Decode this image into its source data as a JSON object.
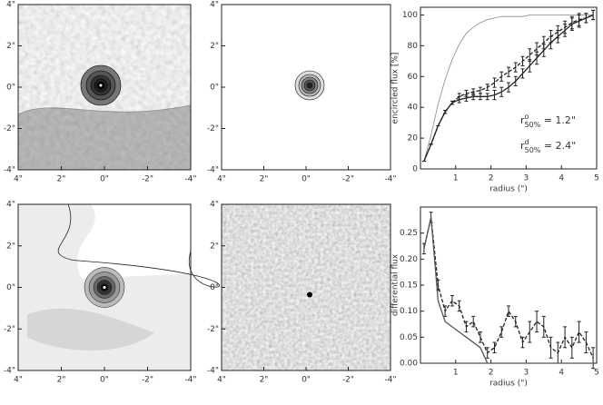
{
  "chart_data": [
    {
      "type": "image",
      "xlim": [
        4,
        -4
      ],
      "ylim": [
        -4,
        4
      ],
      "xticks": [
        {
          "value": 4,
          "label": "4\""
        },
        {
          "value": 2,
          "label": "2\""
        },
        {
          "value": 0,
          "label": "0\""
        },
        {
          "value": -2,
          "label": "-2\""
        },
        {
          "value": -4,
          "label": "-4\""
        }
      ],
      "yticks": [
        {
          "value": 4,
          "label": "4\""
        },
        {
          "value": 2,
          "label": "2\""
        },
        {
          "value": 0,
          "label": "0\""
        },
        {
          "value": -2,
          "label": "-2\""
        },
        {
          "value": -4,
          "label": "-4\""
        }
      ]
    },
    {
      "type": "image",
      "xlim": [
        4,
        -4
      ],
      "ylim": [
        -4,
        4
      ],
      "xticks": [
        {
          "value": 4,
          "label": "4\""
        },
        {
          "value": 2,
          "label": "2\""
        },
        {
          "value": 0,
          "label": "0\""
        },
        {
          "value": -2,
          "label": "-2\""
        },
        {
          "value": -4,
          "label": "-4\""
        }
      ],
      "yticks": [
        {
          "value": 4,
          "label": "4\""
        },
        {
          "value": 2,
          "label": "2\""
        },
        {
          "value": 0,
          "label": "0\""
        },
        {
          "value": -2,
          "label": "-2\""
        },
        {
          "value": -4,
          "label": "-4\""
        }
      ]
    },
    {
      "type": "line",
      "ylabel": "encircled flux [%]",
      "xlabel": "radius (\")",
      "xlim": [
        0,
        5
      ],
      "ylim": [
        0,
        105
      ],
      "xticks": [
        1,
        2,
        3,
        4,
        5
      ],
      "yticks": [
        0,
        20,
        40,
        60,
        80,
        100
      ],
      "x": [
        0.1,
        0.3,
        0.5,
        0.7,
        0.9,
        1.1,
        1.3,
        1.5,
        1.7,
        1.9,
        2.1,
        2.3,
        2.5,
        2.7,
        2.9,
        3.1,
        3.3,
        3.5,
        3.7,
        3.9,
        4.1,
        4.3,
        4.5,
        4.7,
        4.9
      ],
      "series": [
        {
          "color": "#888888",
          "style": "thin",
          "values": [
            5,
            22,
            42,
            58,
            71,
            81,
            88,
            92,
            95,
            97,
            98,
            99,
            99,
            99,
            99,
            100,
            100,
            100,
            100,
            100,
            100,
            100,
            100,
            100,
            100
          ]
        },
        {
          "color": "#222222",
          "style": "dashed",
          "values": [
            5,
            16,
            28,
            37,
            43,
            47,
            49,
            50,
            51,
            53,
            56,
            60,
            63,
            66,
            70,
            74,
            78,
            82,
            86,
            89,
            92,
            95,
            97,
            98,
            100
          ],
          "errors": [
            0,
            0,
            0,
            1,
            1,
            2,
            2,
            2,
            2,
            2,
            3,
            3,
            3,
            3,
            3,
            4,
            4,
            4,
            4,
            4,
            4,
            4,
            4,
            3,
            3
          ]
        },
        {
          "color": "#222222",
          "style": "solid",
          "values": [
            5,
            16,
            28,
            37,
            43,
            45,
            46,
            47,
            47,
            47,
            48,
            50,
            53,
            57,
            62,
            67,
            72,
            77,
            82,
            86,
            90,
            94,
            96,
            98,
            100
          ],
          "errors": [
            0,
            0,
            0,
            1,
            1,
            2,
            2,
            2,
            2,
            2,
            3,
            3,
            3,
            3,
            3,
            4,
            4,
            4,
            4,
            4,
            4,
            4,
            4,
            3,
            3
          ]
        }
      ],
      "annotations": [
        {
          "text": "r",
          "sup": "o",
          "sub": "50%",
          "tail": " = 1.2\""
        },
        {
          "text": "r",
          "sup": "d",
          "sub": "50%",
          "tail": " = 2.4\""
        }
      ]
    },
    {
      "type": "image",
      "xlim": [
        4,
        -4
      ],
      "ylim": [
        -4,
        4
      ],
      "xticks": [
        {
          "value": 4,
          "label": "4\""
        },
        {
          "value": 2,
          "label": "2\""
        },
        {
          "value": 0,
          "label": "0\""
        },
        {
          "value": -2,
          "label": "-2\""
        },
        {
          "value": -4,
          "label": "-4\""
        }
      ],
      "yticks": [
        {
          "value": 4,
          "label": "4\""
        },
        {
          "value": 2,
          "label": "2\""
        },
        {
          "value": 0,
          "label": "0\""
        },
        {
          "value": -2,
          "label": "-2\""
        },
        {
          "value": -4,
          "label": "-4\""
        }
      ]
    },
    {
      "type": "image",
      "xlim": [
        4,
        -4
      ],
      "ylim": [
        -4,
        4
      ],
      "xticks": [
        {
          "value": 4,
          "label": "4\""
        },
        {
          "value": 2,
          "label": "2\""
        },
        {
          "value": 0,
          "label": "0\""
        },
        {
          "value": -2,
          "label": "-2\""
        },
        {
          "value": -4,
          "label": "-4\""
        }
      ],
      "yticks": [
        {
          "value": 4,
          "label": "4\""
        },
        {
          "value": 2,
          "label": "2\""
        },
        {
          "value": 0,
          "label": "0\""
        },
        {
          "value": -2,
          "label": "-2\""
        },
        {
          "value": -4,
          "label": "-4\""
        }
      ]
    },
    {
      "type": "line",
      "ylabel": "differential flux",
      "xlabel": "radius (\")",
      "xlim": [
        0,
        5
      ],
      "ylim": [
        0,
        0.3
      ],
      "xticks": [
        1,
        2,
        3,
        4,
        5
      ],
      "yticks": [
        {
          "value": 0,
          "label": "0.00"
        },
        0.05,
        {
          "value": 0.1,
          "label": "0.10"
        },
        {
          "value": 0.15,
          "label": "0.15"
        },
        {
          "value": 0.2,
          "label": "0.20"
        },
        0.25
      ],
      "x": [
        0.1,
        0.3,
        0.5,
        0.7,
        0.9,
        1.1,
        1.3,
        1.5,
        1.7,
        1.9,
        2.1,
        2.3,
        2.5,
        2.7,
        2.9,
        3.1,
        3.3,
        3.5,
        3.7,
        3.9,
        4.1,
        4.3,
        4.5,
        4.7,
        4.9
      ],
      "series": [
        {
          "color": "#222222",
          "style": "dashed",
          "values": [
            0.22,
            0.28,
            0.15,
            0.1,
            0.12,
            0.11,
            0.07,
            0.08,
            0.05,
            0.02,
            0.03,
            0.06,
            0.1,
            0.08,
            0.04,
            0.06,
            0.08,
            0.07,
            0.03,
            0.02,
            0.05,
            0.03,
            0.06,
            0.04,
            0.01
          ],
          "errors": [
            0.01,
            0.01,
            0.01,
            0.01,
            0.01,
            0.01,
            0.01,
            0.01,
            0.01,
            0.01,
            0.01,
            0.01,
            0.01,
            0.01,
            0.01,
            0.02,
            0.02,
            0.02,
            0.02,
            0.02,
            0.02,
            0.02,
            0.02,
            0.02,
            0.02
          ]
        },
        {
          "color": "#555555",
          "style": "solid",
          "values": [
            0.22,
            0.28,
            0.12,
            0.08,
            0.07,
            0.06,
            0.05,
            0.04,
            0.03,
            0,
            0,
            0,
            0,
            0,
            0,
            0,
            0,
            0,
            0,
            0,
            0,
            0,
            0,
            0,
            0
          ]
        }
      ]
    }
  ]
}
